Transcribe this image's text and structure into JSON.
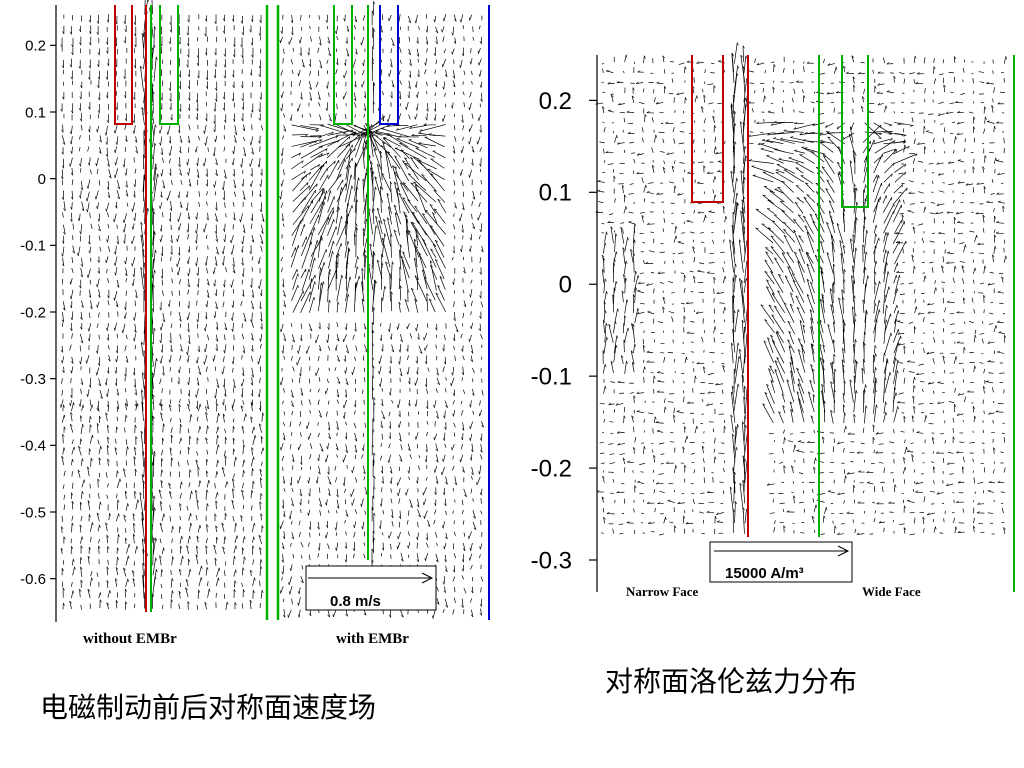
{
  "slide": {
    "caption_left": "电磁制动前后对称面速度场",
    "caption_right": "对称面洛伦兹力分布"
  },
  "chart_data": [
    {
      "type": "scatter",
      "title": "",
      "xlabel": "",
      "ylabel": "",
      "ylim": [
        -0.62,
        0.22
      ],
      "y_ticks": [
        "0.2",
        "0.1",
        "0",
        "-0.1",
        "-0.2",
        "-0.3",
        "-0.4",
        "-0.5",
        "-0.6"
      ],
      "panel_labels": [
        "without EMBr",
        "with EMBr"
      ],
      "scale_arrow_label": "0.8 m/s",
      "grid": false,
      "colors": {
        "nozzle_red": "#c00000",
        "nozzle_green": "#00b000",
        "border_blue": "#0000d0",
        "arrow": "#000000"
      }
    },
    {
      "type": "scatter",
      "title": "",
      "xlabel": "",
      "ylabel": "",
      "ylim": [
        -0.3,
        0.22
      ],
      "y_ticks": [
        "0.2",
        "0.1",
        "0",
        "-0.1",
        "-0.2",
        "-0.3"
      ],
      "face_labels": [
        "Narrow Face",
        "Wide Face"
      ],
      "scale_arrow_label": "15000 A/m³",
      "grid": false,
      "colors": {
        "nozzle_red": "#c00000",
        "nozzle_green": "#00b000",
        "arrow": "#000000"
      }
    }
  ]
}
